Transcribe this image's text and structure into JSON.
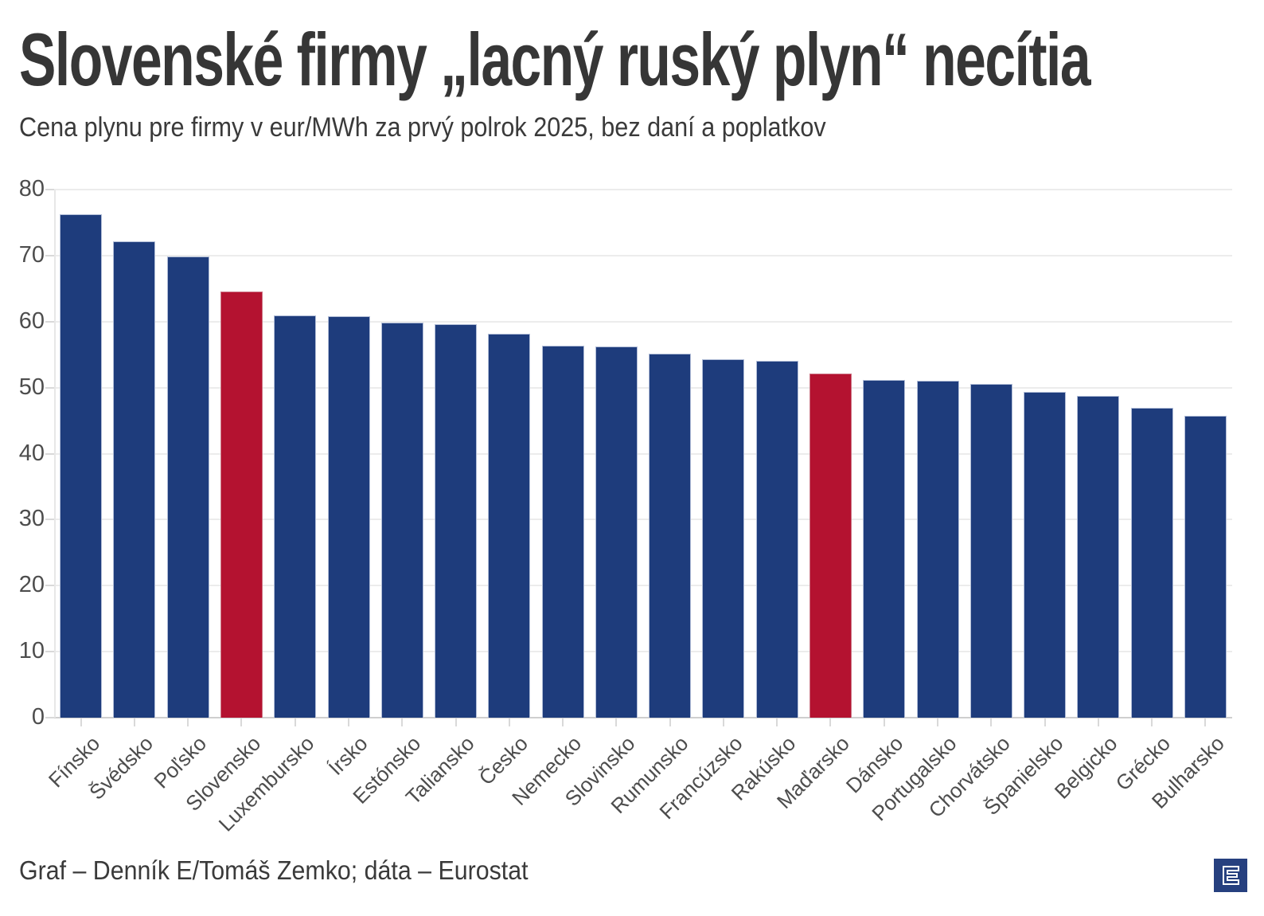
{
  "header": {
    "title": "Slovenské firmy „lacný ruský plyn“ necítia",
    "subtitle": "Cena plynu pre firmy v eur/MWh za prvý polrok 2025, bez daní a poplatkov"
  },
  "footer": {
    "credit": "Graf – Denník E/Tomáš Zemko; dáta – Eurostat",
    "logo": "dennik-e-logo"
  },
  "colors": {
    "bar_blue": "#1e3c7c",
    "bar_red": "#b41230",
    "grid": "#ececec",
    "baseline": "#cfcfcf",
    "tick": "#d9d9d9",
    "tick_text": "#4d4d4d",
    "title_text": "#363636",
    "logo_bg": "#26407f",
    "logo_glyph": "#ffffff"
  },
  "chart_data": {
    "type": "bar",
    "title": "Slovenské firmy „lacný ruský plyn“ necítia",
    "subtitle": "Cena plynu pre firmy v eur/MWh za prvý polrok 2025, bez daní a poplatkov",
    "xlabel": "",
    "ylabel": "eur/MWh",
    "ylim": [
      0,
      80
    ],
    "yticks": [
      0,
      10,
      20,
      30,
      40,
      50,
      60,
      70,
      80
    ],
    "grid": "horizontal",
    "legend": "none",
    "categories": [
      "Fínsko",
      "Švédsko",
      "Poľsko",
      "Slovensko",
      "Luxembursko",
      "Írsko",
      "Estónsko",
      "Taliansko",
      "Česko",
      "Nemecko",
      "Slovinsko",
      "Rumunsko",
      "Francúzsko",
      "Rakúsko",
      "Maďarsko",
      "Dánsko",
      "Portugalsko",
      "Chorvátsko",
      "Španielsko",
      "Belgicko",
      "Grécko",
      "Bulharsko"
    ],
    "values": [
      76.2,
      72.1,
      69.9,
      64.6,
      60.9,
      60.8,
      59.9,
      59.6,
      58.1,
      56.3,
      56.2,
      55.2,
      54.3,
      54.0,
      52.1,
      51.2,
      51.0,
      50.5,
      49.3,
      48.8,
      46.9,
      45.7
    ],
    "highlight_indices": [
      3,
      14
    ],
    "highlighted_categories": [
      "Slovensko",
      "Maďarsko"
    ]
  }
}
